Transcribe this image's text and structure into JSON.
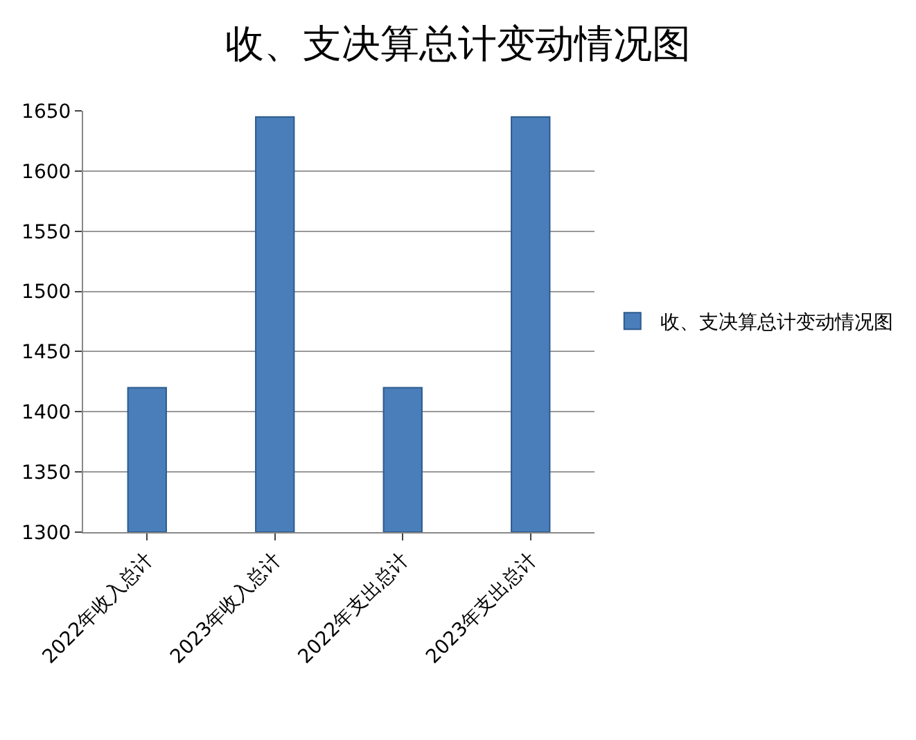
{
  "chart_data": {
    "type": "bar",
    "title": "收、支决算总计变动情况图",
    "categories": [
      "2022年收入总计",
      "2023年收入总计",
      "2022年支出总计",
      "2023年支出总计"
    ],
    "series": [
      {
        "name": "收、支决算总计变动情况图",
        "color": "#4a7ebb",
        "values": [
          1420,
          1645,
          1420,
          1645
        ]
      }
    ],
    "ylim": [
      1300,
      1650
    ],
    "yticks": [
      1300,
      1350,
      1400,
      1450,
      1500,
      1550,
      1600,
      1650
    ],
    "grid": "y",
    "legend": "right"
  }
}
